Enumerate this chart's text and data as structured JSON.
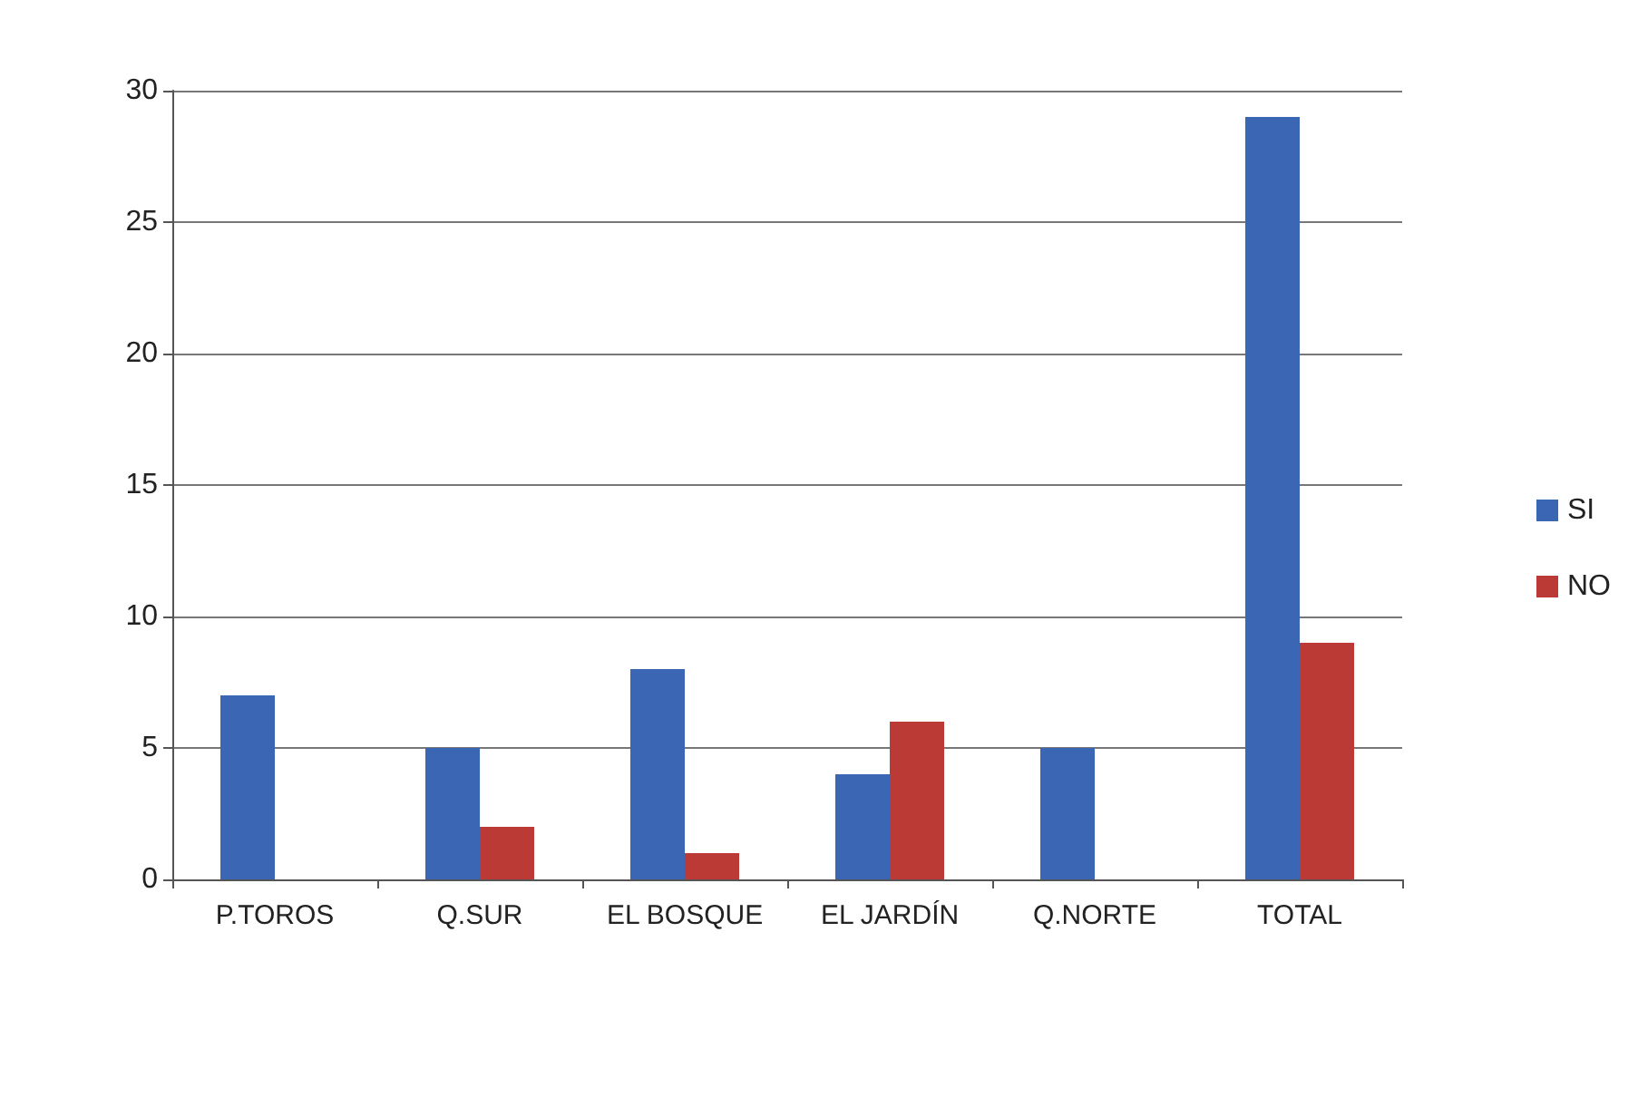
{
  "chart_data": {
    "type": "bar",
    "categories": [
      "P.TOROS",
      "Q.SUR",
      "EL BOSQUE",
      "EL JARDÍN",
      "Q.NORTE",
      "TOTAL"
    ],
    "series": [
      {
        "name": "SI",
        "color": "#3b66b3",
        "values": [
          7,
          5,
          8,
          4,
          5,
          29
        ]
      },
      {
        "name": "NO",
        "color": "#bb3a35",
        "values": [
          0,
          2,
          1,
          6,
          0,
          9
        ]
      }
    ],
    "ylim": [
      0,
      30
    ],
    "yticks": [
      0,
      5,
      10,
      15,
      20,
      25,
      30
    ],
    "grid": "y",
    "legend": "right"
  }
}
